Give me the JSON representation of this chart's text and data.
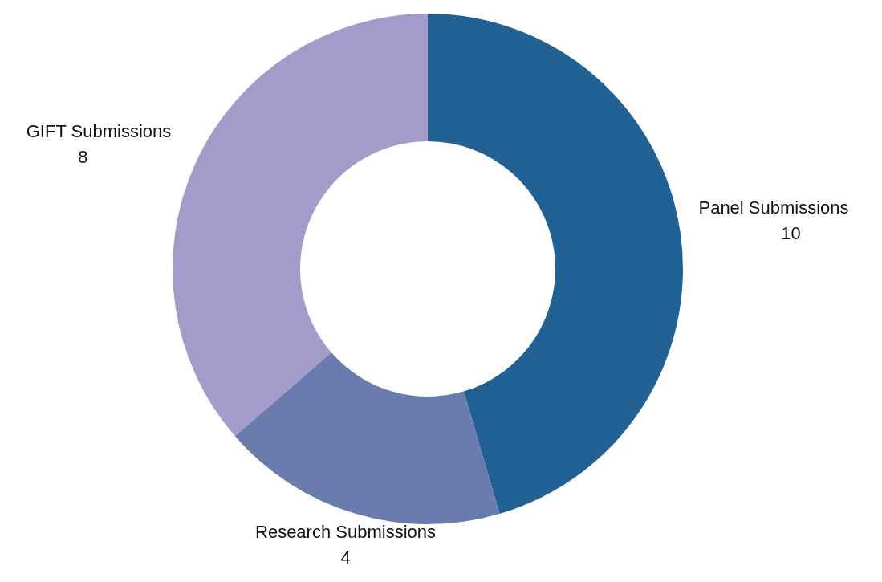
{
  "chart_data": {
    "type": "donut",
    "categories": [
      "Panel Submissions",
      "Research Submissions",
      "GIFT Submissions"
    ],
    "values": [
      10,
      4,
      8
    ],
    "colors": [
      "#226194",
      "#6a7bae",
      "#a39ccb"
    ],
    "data_labels": true,
    "legend": false
  }
}
